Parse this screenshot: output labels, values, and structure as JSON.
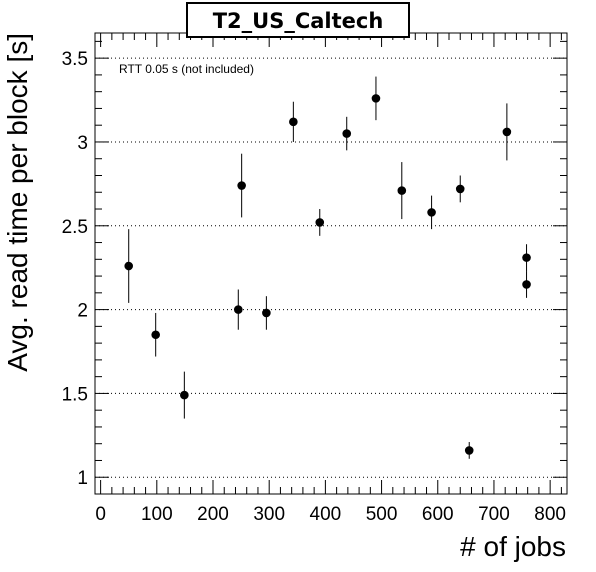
{
  "chart_data": {
    "type": "scatter",
    "title": "T2_US_Caltech",
    "xlabel": "# of jobs",
    "ylabel": "Avg. read time per block [s]",
    "annotation": "RTT 0.05 s (not included)",
    "xlim": [
      -10,
      830
    ],
    "ylim": [
      0.9,
      3.65
    ],
    "grid": "horizontal-dotted",
    "xticks": [
      0,
      100,
      200,
      300,
      400,
      500,
      600,
      700,
      800
    ],
    "xtick_labels": [
      "0",
      "100",
      "200",
      "300",
      "400",
      "500",
      "600",
      "700",
      "800"
    ],
    "yticks": [
      1,
      1.5,
      2,
      2.5,
      3,
      3.5
    ],
    "ytick_labels": [
      "1",
      "1.5",
      "2",
      "2.5",
      "3",
      "3.5"
    ],
    "points": [
      {
        "x": 50,
        "y": 2.26,
        "err": 0.22
      },
      {
        "x": 98,
        "y": 1.85,
        "err": 0.13
      },
      {
        "x": 149,
        "y": 1.49,
        "err": 0.14
      },
      {
        "x": 245,
        "y": 2.0,
        "err": 0.12
      },
      {
        "x": 251,
        "y": 2.74,
        "err": 0.19
      },
      {
        "x": 295,
        "y": 1.98,
        "err": 0.1
      },
      {
        "x": 343,
        "y": 3.12,
        "err": 0.12
      },
      {
        "x": 390,
        "y": 2.52,
        "err": 0.08
      },
      {
        "x": 438,
        "y": 3.05,
        "err": 0.1
      },
      {
        "x": 490,
        "y": 3.26,
        "err": 0.13
      },
      {
        "x": 536,
        "y": 2.71,
        "err": 0.17
      },
      {
        "x": 589,
        "y": 2.58,
        "err": 0.1
      },
      {
        "x": 640,
        "y": 2.72,
        "err": 0.08
      },
      {
        "x": 656,
        "y": 1.16,
        "err": 0.05
      },
      {
        "x": 723,
        "y": 3.06,
        "err": 0.17
      },
      {
        "x": 758,
        "y": 2.31,
        "err": 0.08
      },
      {
        "x": 758,
        "y": 2.15,
        "err": 0.08
      }
    ]
  }
}
